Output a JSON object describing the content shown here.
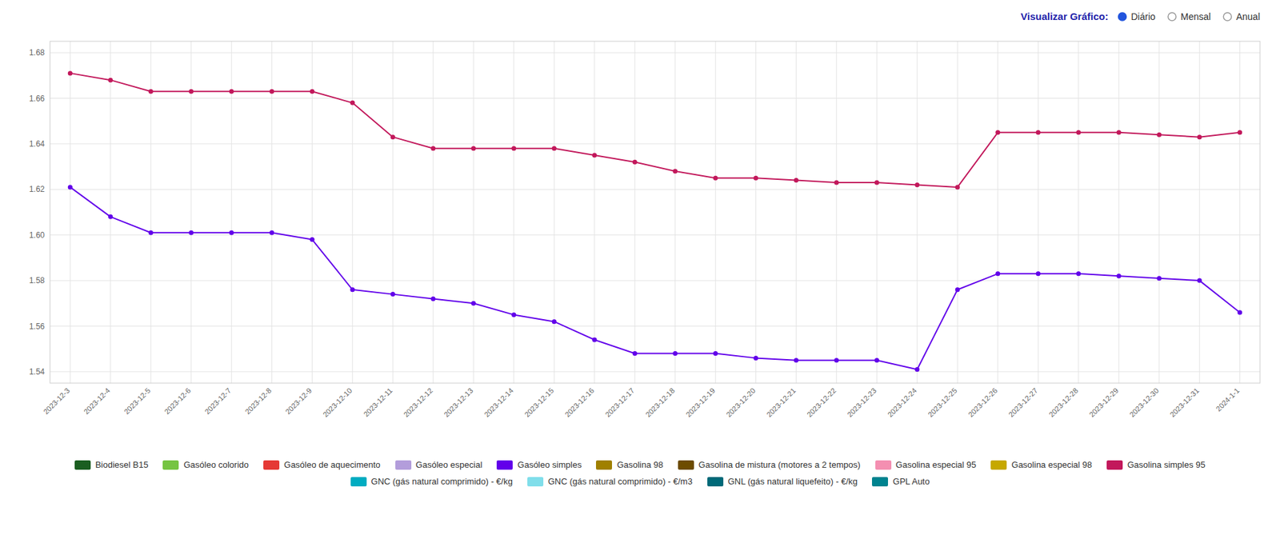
{
  "chart_data": {
    "type": "line",
    "annotations": [
      "Visualizar Gráfico:",
      "Diário",
      "Mensal",
      "Anual"
    ],
    "categories": [
      "2023-12-3",
      "2023-12-4",
      "2023-12-5",
      "2023-12-6",
      "2023-12-7",
      "2023-12-8",
      "2023-12-9",
      "2023-12-10",
      "2023-12-11",
      "2023-12-12",
      "2023-12-13",
      "2023-12-14",
      "2023-12-15",
      "2023-12-16",
      "2023-12-17",
      "2023-12-18",
      "2023-12-19",
      "2023-12-20",
      "2023-12-21",
      "2023-12-22",
      "2023-12-23",
      "2023-12-24",
      "2023-12-25",
      "2023-12-26",
      "2023-12-27",
      "2023-12-28",
      "2023-12-29",
      "2023-12-30",
      "2023-12-31",
      "2024-1-1"
    ],
    "series": [
      {
        "name": "Biodiesel B15",
        "color": "#1b5e20",
        "values": [
          null,
          null,
          null,
          null,
          null,
          null,
          null,
          null,
          null,
          null,
          null,
          null,
          null,
          null,
          null,
          null,
          null,
          null,
          null,
          null,
          null,
          null,
          null,
          null,
          null,
          null,
          null,
          null,
          null,
          null
        ]
      },
      {
        "name": "Gasóleo colorido",
        "color": "#76c442",
        "values": [
          null,
          null,
          null,
          null,
          null,
          null,
          null,
          null,
          null,
          null,
          null,
          null,
          null,
          null,
          null,
          null,
          null,
          null,
          null,
          null,
          null,
          null,
          null,
          null,
          null,
          null,
          null,
          null,
          null,
          null
        ]
      },
      {
        "name": "Gasóleo de aquecimento",
        "color": "#e53935",
        "values": [
          null,
          null,
          null,
          null,
          null,
          null,
          null,
          null,
          null,
          null,
          null,
          null,
          null,
          null,
          null,
          null,
          null,
          null,
          null,
          null,
          null,
          null,
          null,
          null,
          null,
          null,
          null,
          null,
          null,
          null
        ]
      },
      {
        "name": "Gasóleo especial",
        "color": "#b39ddb",
        "values": [
          null,
          null,
          null,
          null,
          null,
          null,
          null,
          null,
          null,
          null,
          null,
          null,
          null,
          null,
          null,
          null,
          null,
          null,
          null,
          null,
          null,
          null,
          null,
          null,
          null,
          null,
          null,
          null,
          null,
          null
        ]
      },
      {
        "name": "Gasóleo simples",
        "color": "#6200ea",
        "values": [
          1.621,
          1.608,
          1.601,
          1.601,
          1.601,
          1.601,
          1.598,
          1.576,
          1.574,
          1.572,
          1.57,
          1.565,
          1.562,
          1.554,
          1.548,
          1.548,
          1.548,
          1.546,
          1.545,
          1.545,
          1.545,
          1.541,
          1.576,
          1.583,
          1.583,
          1.583,
          1.582,
          1.581,
          1.58,
          1.566
        ]
      },
      {
        "name": "Gasolina 98",
        "color": "#a08000",
        "values": [
          null,
          null,
          null,
          null,
          null,
          null,
          null,
          null,
          null,
          null,
          null,
          null,
          null,
          null,
          null,
          null,
          null,
          null,
          null,
          null,
          null,
          null,
          null,
          null,
          null,
          null,
          null,
          null,
          null,
          null
        ]
      },
      {
        "name": "Gasolina de mistura (motores a 2 tempos)",
        "color": "#6d4c00",
        "values": [
          null,
          null,
          null,
          null,
          null,
          null,
          null,
          null,
          null,
          null,
          null,
          null,
          null,
          null,
          null,
          null,
          null,
          null,
          null,
          null,
          null,
          null,
          null,
          null,
          null,
          null,
          null,
          null,
          null,
          null
        ]
      },
      {
        "name": "Gasolina especial 95",
        "color": "#f48fb1",
        "values": [
          null,
          null,
          null,
          null,
          null,
          null,
          null,
          null,
          null,
          null,
          null,
          null,
          null,
          null,
          null,
          null,
          null,
          null,
          null,
          null,
          null,
          null,
          null,
          null,
          null,
          null,
          null,
          null,
          null,
          null
        ]
      },
      {
        "name": "Gasolina especial 98",
        "color": "#c6a800",
        "values": [
          null,
          null,
          null,
          null,
          null,
          null,
          null,
          null,
          null,
          null,
          null,
          null,
          null,
          null,
          null,
          null,
          null,
          null,
          null,
          null,
          null,
          null,
          null,
          null,
          null,
          null,
          null,
          null,
          null,
          null
        ]
      },
      {
        "name": "Gasolina simples 95",
        "color": "#c2185b",
        "values": [
          1.671,
          1.668,
          1.663,
          1.663,
          1.663,
          1.663,
          1.663,
          1.658,
          1.643,
          1.638,
          1.638,
          1.638,
          1.638,
          1.635,
          1.632,
          1.628,
          1.625,
          1.625,
          1.624,
          1.623,
          1.623,
          1.622,
          1.621,
          1.645,
          1.645,
          1.645,
          1.645,
          1.644,
          1.643,
          1.645
        ]
      },
      {
        "name": "GNC (gás natural comprimido) - €/kg",
        "color": "#00acc1",
        "values": [
          null,
          null,
          null,
          null,
          null,
          null,
          null,
          null,
          null,
          null,
          null,
          null,
          null,
          null,
          null,
          null,
          null,
          null,
          null,
          null,
          null,
          null,
          null,
          null,
          null,
          null,
          null,
          null,
          null,
          null
        ]
      },
      {
        "name": "GNC (gás natural comprimido) - €/m3",
        "color": "#80deea",
        "values": [
          null,
          null,
          null,
          null,
          null,
          null,
          null,
          null,
          null,
          null,
          null,
          null,
          null,
          null,
          null,
          null,
          null,
          null,
          null,
          null,
          null,
          null,
          null,
          null,
          null,
          null,
          null,
          null,
          null,
          null
        ]
      },
      {
        "name": "GNL (gás natural liquefeito) - €/kg",
        "color": "#006978",
        "values": [
          null,
          null,
          null,
          null,
          null,
          null,
          null,
          null,
          null,
          null,
          null,
          null,
          null,
          null,
          null,
          null,
          null,
          null,
          null,
          null,
          null,
          null,
          null,
          null,
          null,
          null,
          null,
          null,
          null,
          null
        ]
      },
      {
        "name": "GPL Auto",
        "color": "#00838f",
        "values": [
          null,
          null,
          null,
          null,
          null,
          null,
          null,
          null,
          null,
          null,
          null,
          null,
          null,
          null,
          null,
          null,
          null,
          null,
          null,
          null,
          null,
          null,
          null,
          null,
          null,
          null,
          null,
          null,
          null,
          null
        ]
      }
    ],
    "ylim": [
      1.535,
      1.685
    ],
    "yticks": [
      1.54,
      1.56,
      1.58,
      {
        "value": 1.6,
        "label": "1.60"
      },
      1.62,
      1.64,
      1.66,
      1.68
    ],
    "grid": true,
    "marker": "circle"
  }
}
